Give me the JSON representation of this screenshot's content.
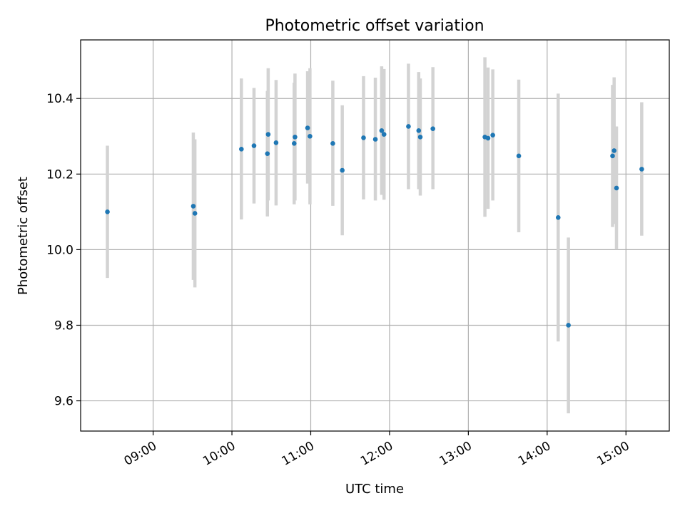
{
  "chart_data": {
    "type": "scatter",
    "title": "Photometric offset variation",
    "xlabel": "UTC time",
    "ylabel": "Photometric offset",
    "x_unit": "hour",
    "xlim": [
      8.08,
      15.55
    ],
    "ylim": [
      9.52,
      10.555
    ],
    "x_ticks": [
      {
        "value": 9,
        "label": "09:00"
      },
      {
        "value": 10,
        "label": "10:00"
      },
      {
        "value": 11,
        "label": "11:00"
      },
      {
        "value": 12,
        "label": "12:00"
      },
      {
        "value": 13,
        "label": "13:00"
      },
      {
        "value": 14,
        "label": "14:00"
      },
      {
        "value": 15,
        "label": "15:00"
      }
    ],
    "y_ticks": [
      {
        "value": 9.6,
        "label": "9.6"
      },
      {
        "value": 9.8,
        "label": "9.8"
      },
      {
        "value": 10.0,
        "label": "10.0"
      },
      {
        "value": 10.2,
        "label": "10.2"
      },
      {
        "value": 10.4,
        "label": "10.4"
      }
    ],
    "grid": true,
    "point_color": "#1f77b4",
    "errorbar_color": "#d3d3d3",
    "points": [
      {
        "x": 8.42,
        "y": 10.1,
        "lo": 9.925,
        "hi": 10.275
      },
      {
        "x": 9.51,
        "y": 10.115,
        "lo": 9.92,
        "hi": 10.31
      },
      {
        "x": 9.53,
        "y": 10.096,
        "lo": 9.9,
        "hi": 10.292
      },
      {
        "x": 10.12,
        "y": 10.266,
        "lo": 10.08,
        "hi": 10.453
      },
      {
        "x": 10.28,
        "y": 10.275,
        "lo": 10.122,
        "hi": 10.428
      },
      {
        "x": 10.45,
        "y": 10.254,
        "lo": 10.088,
        "hi": 10.42
      },
      {
        "x": 10.46,
        "y": 10.305,
        "lo": 10.13,
        "hi": 10.48
      },
      {
        "x": 10.56,
        "y": 10.283,
        "lo": 10.117,
        "hi": 10.449
      },
      {
        "x": 10.79,
        "y": 10.281,
        "lo": 10.12,
        "hi": 10.442
      },
      {
        "x": 10.8,
        "y": 10.298,
        "lo": 10.13,
        "hi": 10.466
      },
      {
        "x": 10.96,
        "y": 10.322,
        "lo": 10.175,
        "hi": 10.472
      },
      {
        "x": 10.99,
        "y": 10.3,
        "lo": 10.12,
        "hi": 10.48
      },
      {
        "x": 11.28,
        "y": 10.281,
        "lo": 10.116,
        "hi": 10.447
      },
      {
        "x": 11.4,
        "y": 10.21,
        "lo": 10.038,
        "hi": 10.382
      },
      {
        "x": 11.67,
        "y": 10.296,
        "lo": 10.133,
        "hi": 10.459
      },
      {
        "x": 11.82,
        "y": 10.292,
        "lo": 10.13,
        "hi": 10.455
      },
      {
        "x": 11.9,
        "y": 10.315,
        "lo": 10.145,
        "hi": 10.485
      },
      {
        "x": 11.93,
        "y": 10.305,
        "lo": 10.132,
        "hi": 10.478
      },
      {
        "x": 12.24,
        "y": 10.326,
        "lo": 10.16,
        "hi": 10.492
      },
      {
        "x": 12.37,
        "y": 10.315,
        "lo": 10.16,
        "hi": 10.47
      },
      {
        "x": 12.39,
        "y": 10.298,
        "lo": 10.143,
        "hi": 10.453
      },
      {
        "x": 12.55,
        "y": 10.32,
        "lo": 10.16,
        "hi": 10.483
      },
      {
        "x": 13.21,
        "y": 10.298,
        "lo": 10.087,
        "hi": 10.509
      },
      {
        "x": 13.25,
        "y": 10.295,
        "lo": 10.108,
        "hi": 10.482
      },
      {
        "x": 13.31,
        "y": 10.303,
        "lo": 10.13,
        "hi": 10.477
      },
      {
        "x": 13.64,
        "y": 10.248,
        "lo": 10.046,
        "hi": 10.45
      },
      {
        "x": 14.14,
        "y": 10.085,
        "lo": 9.757,
        "hi": 10.413
      },
      {
        "x": 14.27,
        "y": 9.8,
        "lo": 9.567,
        "hi": 10.032
      },
      {
        "x": 14.83,
        "y": 10.248,
        "lo": 10.06,
        "hi": 10.436
      },
      {
        "x": 14.85,
        "y": 10.262,
        "lo": 10.068,
        "hi": 10.456
      },
      {
        "x": 14.88,
        "y": 10.163,
        "lo": 10.0,
        "hi": 10.326
      },
      {
        "x": 15.2,
        "y": 10.213,
        "lo": 10.037,
        "hi": 10.39
      }
    ]
  }
}
